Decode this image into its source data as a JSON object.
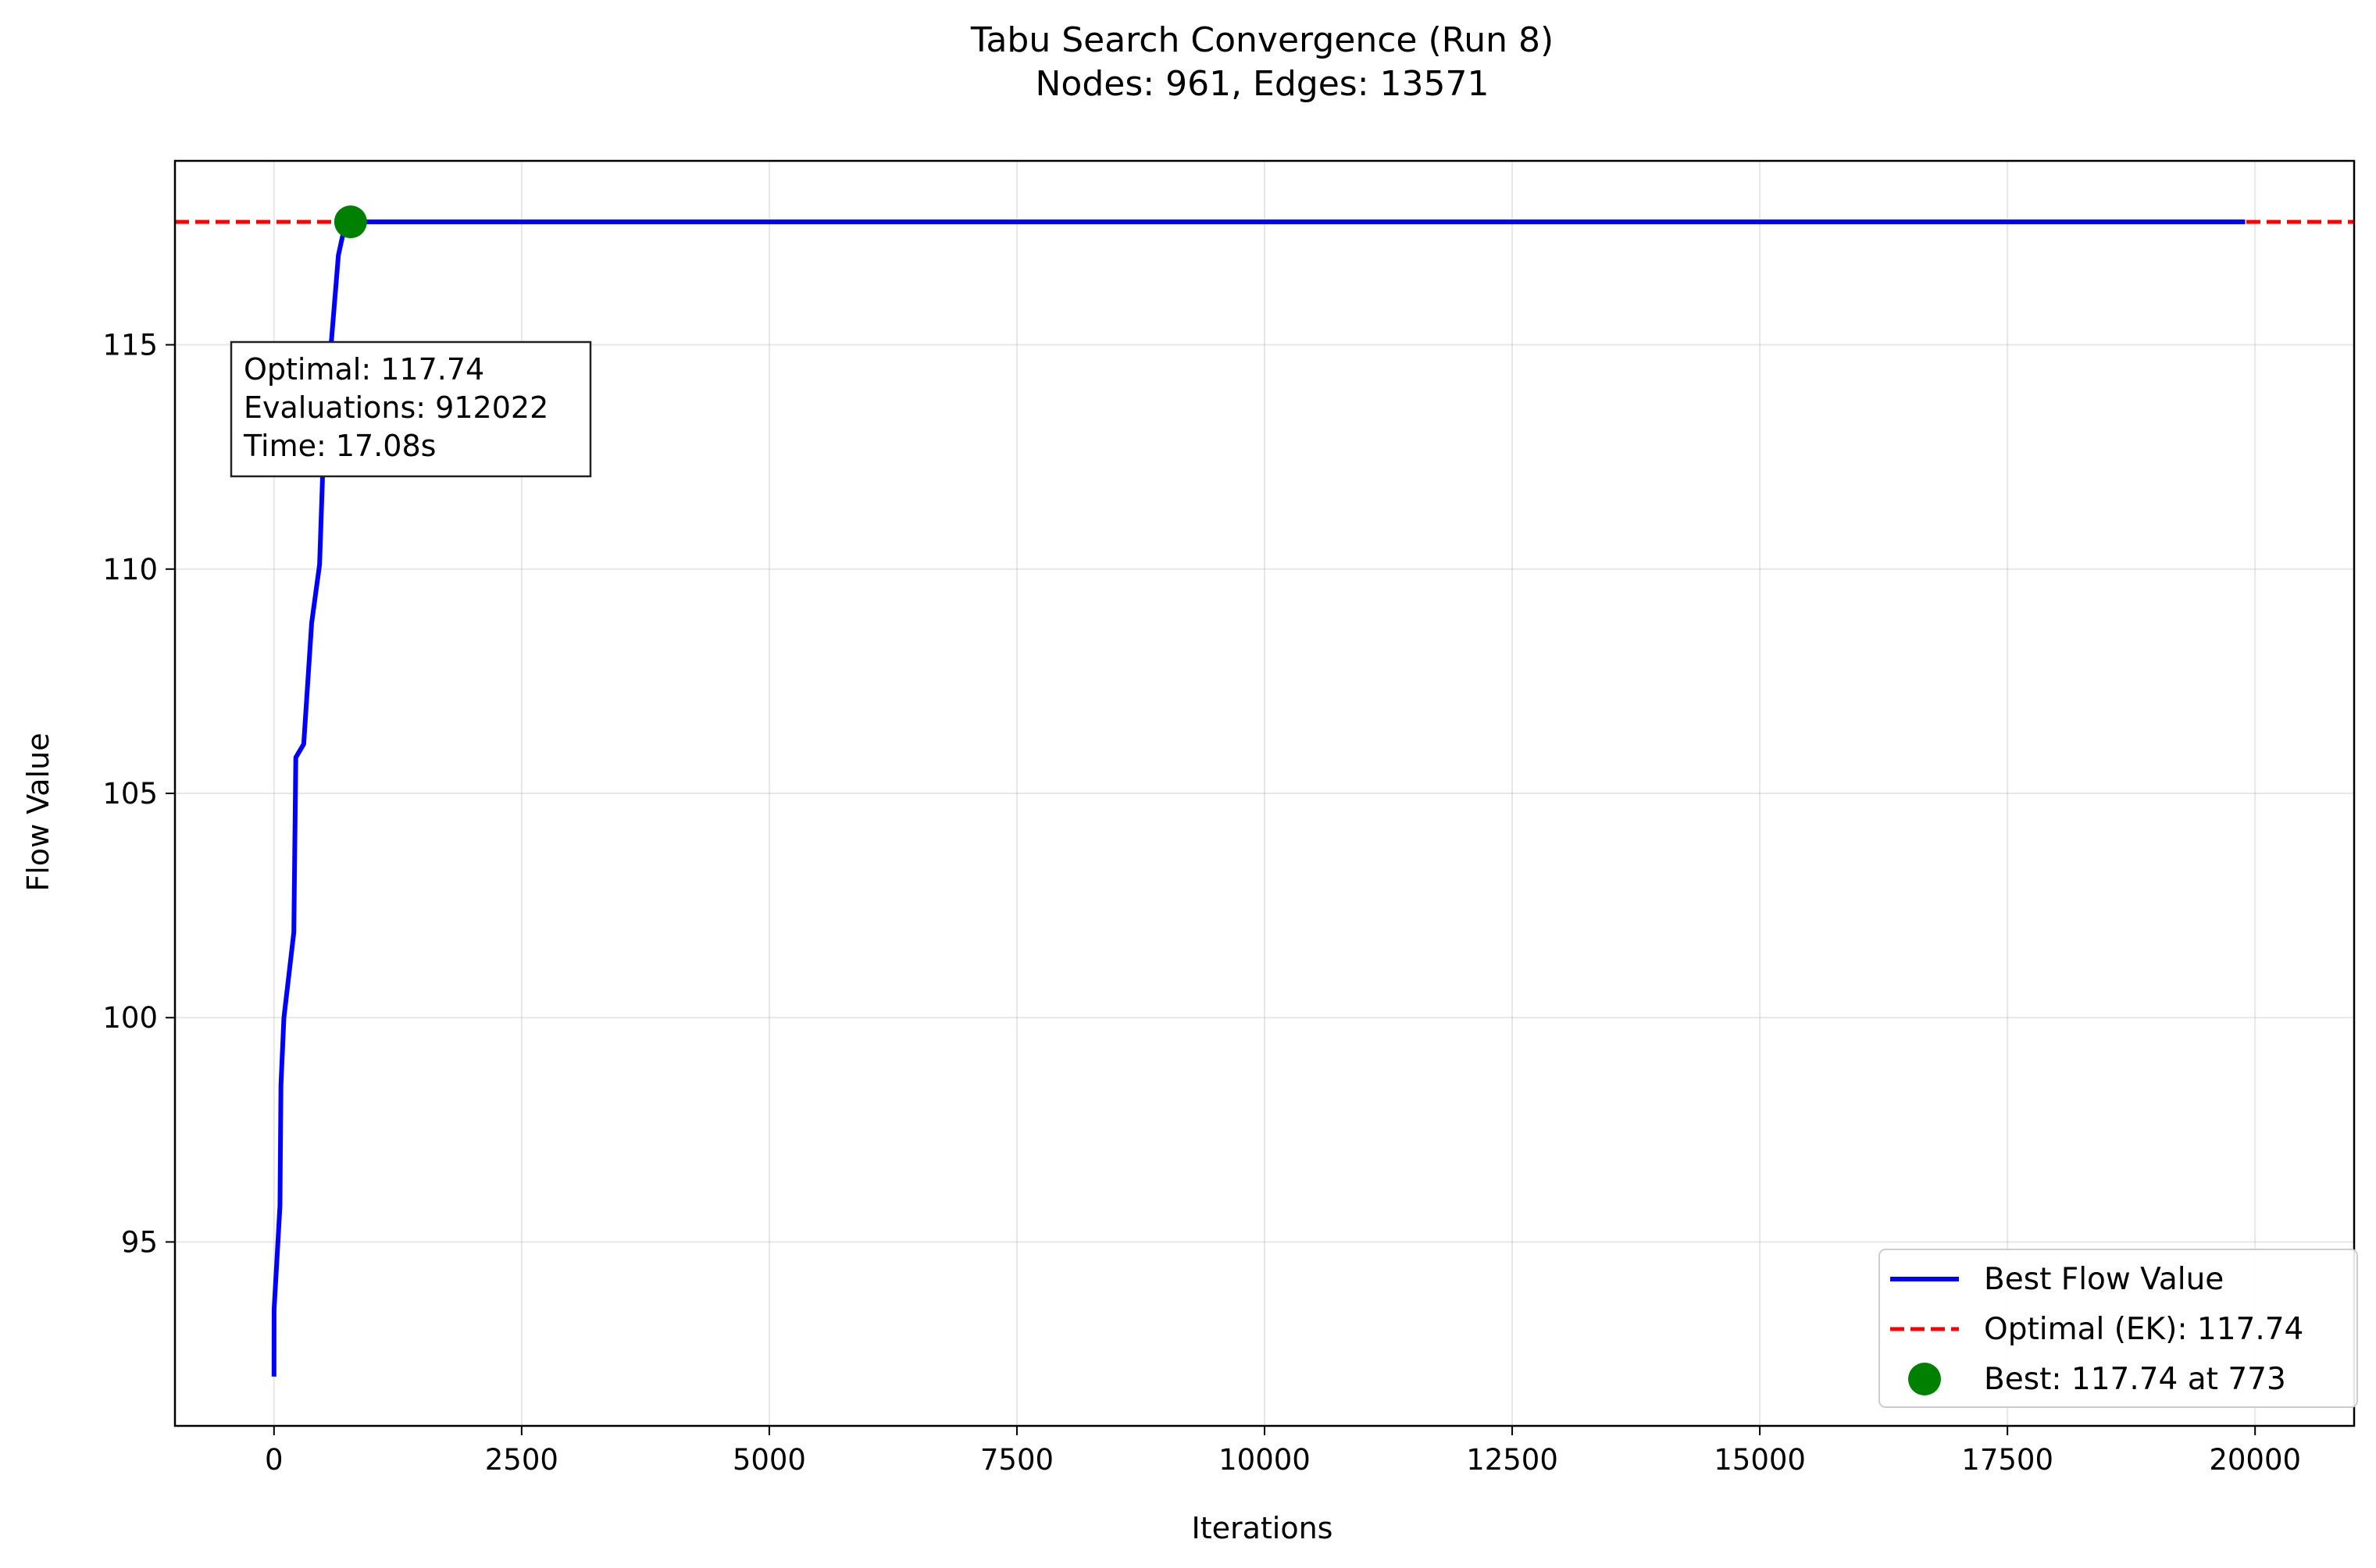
{
  "chart_data": {
    "type": "line",
    "title": "Tabu Search Convergence (Run 8)",
    "subtitle": "Nodes: 961, Edges: 13571",
    "xlabel": "Iterations",
    "ylabel": "Flow Value",
    "xlim": [
      -1000,
      21000
    ],
    "ylim": [
      90.9,
      119.1
    ],
    "xticks": [
      0,
      2500,
      5000,
      7500,
      10000,
      12500,
      15000,
      17500,
      20000
    ],
    "yticks": [
      95,
      100,
      105,
      110,
      115
    ],
    "grid": true,
    "legend_position": "lower right",
    "series": [
      {
        "name": "Best Flow Value",
        "style": "solid",
        "color": "#0000ff",
        "x": [
          0,
          1,
          60,
          70,
          100,
          200,
          220,
          300,
          380,
          460,
          520,
          580,
          650,
          700,
          773,
          19900
        ],
        "y": [
          92.0,
          93.5,
          95.8,
          98.5,
          100.0,
          101.9,
          105.8,
          106.1,
          108.8,
          110.1,
          114.0,
          115.1,
          117.0,
          117.5,
          117.74,
          117.74
        ]
      },
      {
        "name": "Optimal (EK): 117.74",
        "style": "dashed",
        "color": "#ff0000",
        "y_const": 117.74
      },
      {
        "name": "Best: 117.74 at 773",
        "style": "marker",
        "color": "#008000",
        "x": [
          773
        ],
        "y": [
          117.74
        ]
      }
    ],
    "annotation": {
      "lines": [
        "Optimal: 117.74",
        "Evaluations: 912022",
        "Time: 17.08s"
      ]
    }
  }
}
